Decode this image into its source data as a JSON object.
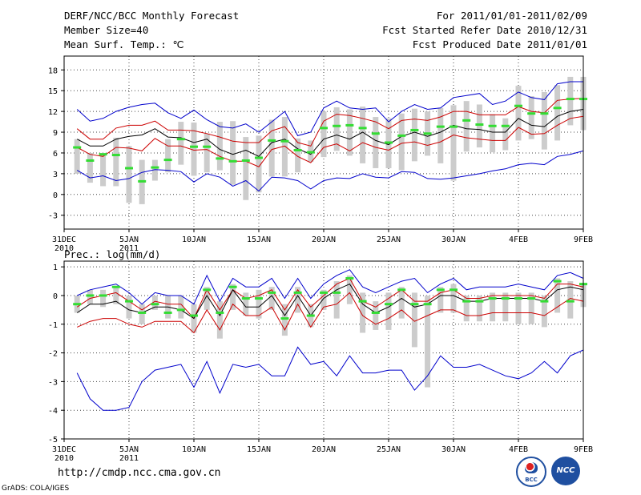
{
  "header": {
    "title": "DERF/NCC/BCC Monthly Forecast",
    "member_size": "Member Size=40",
    "variable": "Mean Surf. Temp.: ℃",
    "period": "For 2011/01/01-2011/02/09",
    "started": "Fcst Started Refer Date 2010/12/31",
    "produced": "Fcst Produced Date 2011/01/01"
  },
  "footer": {
    "url": "http://cmdp.ncc.cma.gov.cn",
    "credit": "GrADS: COLA/IGES",
    "logo_bcc_text": "BCC",
    "logo_ncc_text": "NCC"
  },
  "colors": {
    "ensemble_max_min": "#0000cc",
    "quartile": "#cc0000",
    "mean": "#000000",
    "median": "#33dd33",
    "box": "#cccccc",
    "grid": "#444444"
  },
  "x_ticks": [
    {
      "day": 0,
      "label": "31DEC",
      "sub": "2010"
    },
    {
      "day": 5,
      "label": "5JAN",
      "sub": "2011"
    },
    {
      "day": 10,
      "label": "10JAN",
      "sub": ""
    },
    {
      "day": 15,
      "label": "15JAN",
      "sub": ""
    },
    {
      "day": 20,
      "label": "20JAN",
      "sub": ""
    },
    {
      "day": 25,
      "label": "25JAN",
      "sub": ""
    },
    {
      "day": 30,
      "label": "30JAN",
      "sub": ""
    },
    {
      "day": 35,
      "label": "4FEB",
      "sub": ""
    },
    {
      "day": 40,
      "label": "9FEB",
      "sub": ""
    }
  ],
  "chart_data": [
    {
      "type": "line",
      "title": "Mean Surf. Temp.: ℃",
      "xlim": [
        0,
        40
      ],
      "ylim": [
        -5,
        20
      ],
      "yticks": [
        -3,
        0,
        3,
        6,
        9,
        12,
        15,
        18
      ],
      "x": [
        1,
        2,
        3,
        4,
        5,
        6,
        7,
        8,
        9,
        10,
        11,
        12,
        13,
        14,
        15,
        16,
        17,
        18,
        19,
        20,
        21,
        22,
        23,
        24,
        25,
        26,
        27,
        28,
        29,
        30,
        31,
        32,
        33,
        34,
        35,
        36,
        37,
        38,
        39,
        40
      ],
      "series": [
        {
          "name": "max",
          "values": [
            12.3,
            10.6,
            11,
            12,
            12.6,
            13,
            13.2,
            11.8,
            11,
            12.2,
            10.8,
            9.8,
            9.6,
            10.2,
            9,
            10.5,
            12,
            8.5,
            9,
            12.5,
            13.5,
            12.5,
            12.3,
            12.5,
            10.5,
            12,
            13,
            12.3,
            12.5,
            14,
            14.3,
            14.6,
            13,
            13.5,
            14.8,
            14,
            13.7,
            16,
            16.3,
            16.3
          ]
        },
        {
          "name": "upper_quartile",
          "values": [
            9.5,
            8,
            8,
            9.6,
            10,
            10,
            10.6,
            9.3,
            9.3,
            9.2,
            8.8,
            8.3,
            7.7,
            7.5,
            7.5,
            9.2,
            9.8,
            7.5,
            7,
            10.6,
            11.6,
            11.4,
            11,
            10.5,
            9.5,
            10.7,
            10.9,
            10.7,
            11.2,
            12,
            12,
            11.5,
            11.5,
            11.5,
            12.7,
            12,
            11.8,
            13.6,
            13.8,
            13.9
          ]
        },
        {
          "name": "mean",
          "values": [
            8,
            7,
            7,
            8,
            8.4,
            8.6,
            9.5,
            8.3,
            8.2,
            7.5,
            8,
            6.5,
            5.8,
            6.4,
            5.5,
            7.5,
            8,
            6.6,
            5.8,
            8,
            8.6,
            8,
            9,
            7.8,
            7.2,
            8.4,
            9,
            8.4,
            9,
            10,
            9.5,
            9.4,
            9,
            9,
            11,
            10,
            9.8,
            11.3,
            12,
            12.3
          ]
        },
        {
          "name": "lower_quartile",
          "values": [
            6.8,
            5.8,
            5.5,
            6.8,
            6.7,
            6.3,
            8.1,
            7,
            7,
            6.4,
            6.5,
            5.5,
            4.8,
            4.8,
            4,
            6.5,
            7,
            5.5,
            4.6,
            6.8,
            7.3,
            6.3,
            7.5,
            6.8,
            6.4,
            7.4,
            7.6,
            7.1,
            7.6,
            8.6,
            8.2,
            8,
            7.8,
            7.8,
            9.7,
            8.7,
            8.8,
            10,
            11,
            11.3
          ]
        },
        {
          "name": "min",
          "values": [
            3.5,
            2.4,
            2.7,
            2,
            2.3,
            3.2,
            3.6,
            3.5,
            3.3,
            1.8,
            3,
            2.5,
            1.2,
            2,
            0.5,
            2.5,
            2.4,
            2,
            0.8,
            2,
            2.4,
            2.3,
            3,
            2.5,
            2.4,
            3.3,
            3.2,
            2.3,
            2.2,
            2.4,
            2.7,
            3,
            3.4,
            3.7,
            4.3,
            4.5,
            4.3,
            5.5,
            5.8,
            6.3
          ]
        },
        {
          "name": "median",
          "values": [
            6.8,
            4.9,
            5.8,
            5.7,
            3.8,
            1.9,
            3.9,
            5,
            8,
            6.9,
            6.9,
            5.2,
            4.8,
            4.9,
            5.3,
            7.8,
            7.7,
            6.4,
            6.1,
            9.6,
            9.9,
            10,
            9.6,
            8.8,
            7.5,
            8.5,
            9.3,
            8.8,
            9.8,
            9.8,
            10.7,
            10.1,
            9.9,
            9.9,
            12.8,
            11.7,
            11.7,
            12.5,
            13.8,
            13.8
          ]
        },
        {
          "name": "box_high",
          "values": [
            8,
            6,
            6,
            8.2,
            7,
            5,
            5,
            8,
            10.5,
            10.4,
            8.8,
            10.5,
            10.6,
            8.3,
            8.5,
            10.8,
            11.2,
            8.1,
            7.8,
            12,
            12.6,
            12.3,
            12.7,
            11.2,
            11,
            11.7,
            12.4,
            12,
            12.5,
            12.9,
            13.5,
            13,
            11.6,
            11,
            15.7,
            14.2,
            14.8,
            15.8,
            17,
            17
          ]
        },
        {
          "name": "box_low",
          "values": [
            3,
            1.7,
            1.2,
            1.2,
            -1.2,
            -1.4,
            2,
            3.2,
            4.3,
            2.7,
            3.2,
            3.5,
            1.4,
            -0.8,
            0.3,
            2.6,
            2.6,
            3.2,
            4.7,
            5.4,
            6.3,
            5.6,
            4.5,
            3.8,
            3.8,
            3.5,
            4.8,
            5.6,
            4.5,
            2,
            6.2,
            6.8,
            6.1,
            6.4,
            7.8,
            8,
            6.5,
            7.8,
            10,
            9.3
          ]
        }
      ]
    },
    {
      "type": "line",
      "title": "Prec.: log(mm/d)",
      "xlim": [
        0,
        40
      ],
      "ylim": [
        -5,
        1.2
      ],
      "yticks": [
        -5,
        -4,
        -3,
        -2,
        -1,
        0,
        1
      ],
      "x": [
        1,
        2,
        3,
        4,
        5,
        6,
        7,
        8,
        9,
        10,
        11,
        12,
        13,
        14,
        15,
        16,
        17,
        18,
        19,
        20,
        21,
        22,
        23,
        24,
        25,
        26,
        27,
        28,
        29,
        30,
        31,
        32,
        33,
        34,
        35,
        36,
        37,
        38,
        39,
        40
      ],
      "series": [
        {
          "name": "max",
          "values": [
            0,
            0.2,
            0.3,
            0.4,
            0.1,
            -0.3,
            0.1,
            0,
            0,
            -0.3,
            0.7,
            -0.2,
            0.6,
            0.3,
            0.3,
            0.6,
            -0.1,
            0.6,
            -0.1,
            0.4,
            0.7,
            0.9,
            0.3,
            0.1,
            0.3,
            0.5,
            0.6,
            0.1,
            0.4,
            0.6,
            0.2,
            0.3,
            0.3,
            0.3,
            0.4,
            0.3,
            0.2,
            0.7,
            0.8,
            0.6
          ]
        },
        {
          "name": "upper_quartile",
          "values": [
            -0.4,
            -0.1,
            0,
            0.1,
            -0.2,
            -0.5,
            -0.2,
            -0.3,
            -0.3,
            -0.8,
            0.2,
            -0.5,
            0.2,
            -0.1,
            0,
            0.2,
            -0.5,
            0.2,
            -0.4,
            0,
            0.4,
            0.6,
            -0.2,
            -0.4,
            -0.1,
            0.2,
            -0.2,
            -0.2,
            0.1,
            0.2,
            -0.1,
            -0.1,
            0,
            0,
            0,
            0,
            -0.1,
            0.4,
            0.4,
            0.3
          ]
        },
        {
          "name": "mean",
          "values": [
            -0.6,
            -0.3,
            -0.3,
            -0.2,
            -0.5,
            -0.6,
            -0.4,
            -0.4,
            -0.5,
            -0.8,
            0,
            -0.7,
            0.2,
            -0.4,
            -0.4,
            0,
            -0.7,
            0,
            -0.7,
            -0.1,
            0.2,
            0.4,
            -0.3,
            -0.6,
            -0.4,
            -0.1,
            -0.4,
            -0.3,
            0,
            0,
            -0.2,
            -0.2,
            -0.1,
            -0.1,
            -0.1,
            -0.1,
            -0.2,
            0.2,
            0.3,
            0.2
          ]
        },
        {
          "name": "lower_quartile",
          "values": [
            -1.1,
            -0.9,
            -0.8,
            -0.8,
            -1,
            -1.1,
            -0.9,
            -0.9,
            -0.9,
            -1.3,
            -0.5,
            -1.2,
            -0.3,
            -0.7,
            -0.7,
            -0.4,
            -1.2,
            -0.3,
            -1.1,
            -0.4,
            -0.3,
            0.1,
            -0.7,
            -1,
            -0.8,
            -0.5,
            -0.9,
            -0.7,
            -0.5,
            -0.5,
            -0.7,
            -0.7,
            -0.6,
            -0.6,
            -0.6,
            -0.6,
            -0.7,
            -0.4,
            -0.1,
            -0.2
          ]
        },
        {
          "name": "min",
          "values": [
            -2.7,
            -3.6,
            -4,
            -4,
            -3.9,
            -3,
            -2.6,
            -2.5,
            -2.4,
            -3.2,
            -2.3,
            -3.4,
            -2.4,
            -2.5,
            -2.4,
            -2.8,
            -2.8,
            -1.8,
            -2.4,
            -2.3,
            -2.8,
            -2.1,
            -2.7,
            -2.7,
            -2.6,
            -2.6,
            -3.3,
            -2.8,
            -2.1,
            -2.5,
            -2.5,
            -2.4,
            -2.6,
            -2.8,
            -2.9,
            -2.7,
            -2.3,
            -2.7,
            -2.1,
            -1.9
          ]
        },
        {
          "name": "median",
          "values": [
            -0.3,
            0,
            0,
            0.3,
            -0.2,
            -0.6,
            -0.3,
            -0.6,
            -0.5,
            -0.7,
            0.2,
            -0.6,
            0.3,
            -0.1,
            -0.1,
            0.1,
            -0.8,
            0.1,
            -0.7,
            0.1,
            0.1,
            0.6,
            -0.2,
            -0.6,
            -0.3,
            0.2,
            -0.3,
            -0.3,
            0.2,
            0.2,
            -0.2,
            -0.2,
            -0.1,
            -0.1,
            -0.1,
            -0.1,
            -0.2,
            0.5,
            -0.2,
            0.4
          ]
        },
        {
          "name": "box_high",
          "values": [
            0,
            0.2,
            0.2,
            0.3,
            0,
            -0.3,
            0,
            0,
            0,
            -0.3,
            0.3,
            -0.2,
            0.4,
            0.1,
            0.2,
            0.3,
            -0.3,
            0.3,
            -0.3,
            0.2,
            0.5,
            0.7,
            0.1,
            -0.2,
            0.1,
            0.3,
            0.1,
            0,
            0.3,
            0.4,
            0,
            0,
            0.1,
            0.1,
            0.1,
            0.1,
            0,
            0.6,
            0.5,
            0.4
          ]
        },
        {
          "name": "box_low",
          "values": [
            -0.6,
            -0.3,
            -0.4,
            -0.3,
            -0.8,
            -1,
            -0.5,
            -0.8,
            -0.8,
            -1.3,
            -0.5,
            -1.5,
            -0.5,
            -0.7,
            -0.8,
            -0.5,
            -1.4,
            -0.6,
            -1.1,
            -0.5,
            -0.8,
            -0.3,
            -1.3,
            -1.2,
            -1.2,
            -0.8,
            -1.8,
            -3.2,
            -0.6,
            -0.6,
            -0.9,
            -0.9,
            -0.9,
            -0.9,
            -1,
            -1,
            -1.1,
            -0.6,
            -0.8,
            -0.4
          ]
        }
      ]
    }
  ]
}
